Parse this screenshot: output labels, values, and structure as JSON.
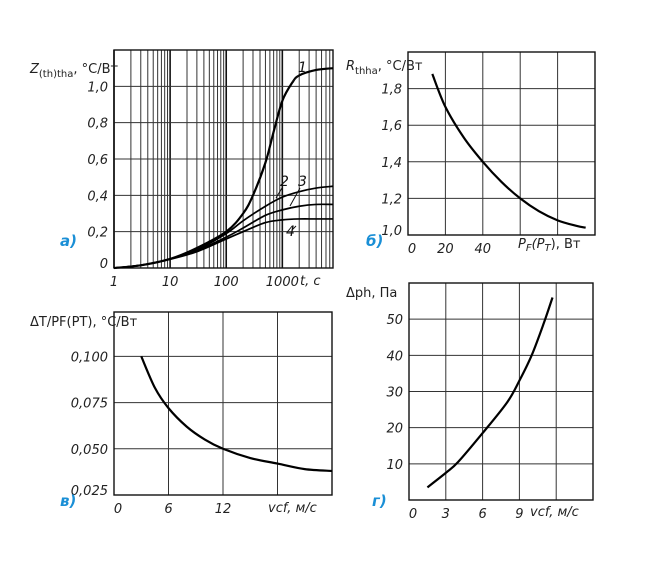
{
  "chart_data": [
    {
      "id": "a",
      "type": "line",
      "panel_label": "а)",
      "ylabel": "Z(th)tha, °C/Вт",
      "ylabel_parts": [
        "Z",
        "(th)tha",
        ", °C/Вт"
      ],
      "xlabel": "t, c",
      "xscale": "log",
      "xlim": [
        1,
        8000
      ],
      "ylim": [
        0,
        1.2
      ],
      "grid": true,
      "xticks": [
        {
          "v": 1,
          "label": "1"
        },
        {
          "v": 10,
          "label": "10"
        },
        {
          "v": 100,
          "label": "100"
        },
        {
          "v": 1000,
          "label": "1000"
        }
      ],
      "yticks": [
        {
          "v": 0,
          "label": "0"
        },
        {
          "v": 0.2,
          "label": "0,2"
        },
        {
          "v": 0.4,
          "label": "0,4"
        },
        {
          "v": 0.6,
          "label": "0,6"
        },
        {
          "v": 0.8,
          "label": "0,8"
        },
        {
          "v": 1.0,
          "label": "1,0"
        }
      ],
      "series": [
        {
          "name": "1",
          "x": [
            1,
            3,
            10,
            30,
            100,
            200,
            300,
            500,
            700,
            1000,
            1500,
            2000,
            4000,
            8000
          ],
          "y": [
            0,
            0.015,
            0.05,
            0.11,
            0.2,
            0.3,
            0.4,
            0.58,
            0.75,
            0.92,
            1.02,
            1.06,
            1.09,
            1.1
          ]
        },
        {
          "name": "2",
          "x": [
            1,
            3,
            10,
            30,
            100,
            200,
            500,
            1000,
            2000,
            4000,
            8000
          ],
          "y": [
            0,
            0.015,
            0.05,
            0.1,
            0.19,
            0.26,
            0.34,
            0.39,
            0.42,
            0.44,
            0.45
          ]
        },
        {
          "name": "3",
          "x": [
            1,
            3,
            10,
            30,
            100,
            200,
            500,
            1000,
            2000,
            4000,
            8000
          ],
          "y": [
            0,
            0.015,
            0.05,
            0.095,
            0.17,
            0.22,
            0.29,
            0.32,
            0.34,
            0.35,
            0.35
          ]
        },
        {
          "name": "4",
          "x": [
            1,
            3,
            10,
            30,
            100,
            200,
            500,
            1000,
            2000,
            4000,
            8000
          ],
          "y": [
            0,
            0.015,
            0.048,
            0.09,
            0.16,
            0.2,
            0.25,
            0.265,
            0.27,
            0.27,
            0.27
          ]
        }
      ]
    },
    {
      "id": "b",
      "type": "line",
      "panel_label": "б)",
      "ylabel": "Rthha, °C/Вт",
      "ylabel_parts": [
        "R",
        "thha",
        ", °C/Вт"
      ],
      "xlabel": "PF(PT), Вт",
      "xlabel_parts": [
        "P",
        "F",
        "(P",
        "T",
        "), Вт"
      ],
      "xscale": "linear",
      "xlim": [
        0,
        100
      ],
      "ylim": [
        1.0,
        2.0
      ],
      "grid": true,
      "xticks": [
        {
          "v": 0,
          "label": "0"
        },
        {
          "v": 20,
          "label": "20"
        },
        {
          "v": 40,
          "label": "40"
        }
      ],
      "yticks": [
        {
          "v": 1.0,
          "label": "1,0"
        },
        {
          "v": 1.2,
          "label": "1,2"
        },
        {
          "v": 1.4,
          "label": "1,4"
        },
        {
          "v": 1.6,
          "label": "1,6"
        },
        {
          "v": 1.8,
          "label": "1,8"
        }
      ],
      "xgrid": [
        20,
        40,
        60,
        80
      ],
      "ygrid": [
        1.2,
        1.4,
        1.6,
        1.8
      ],
      "series": [
        {
          "name": "Rthha",
          "x": [
            13,
            20,
            30,
            40,
            50,
            60,
            70,
            80,
            90,
            95
          ],
          "y": [
            1.88,
            1.7,
            1.53,
            1.4,
            1.29,
            1.2,
            1.13,
            1.08,
            1.05,
            1.04
          ]
        }
      ]
    },
    {
      "id": "c",
      "type": "line",
      "panel_label": "в)",
      "ylabel": "ΔT/PF(PT), °C/Вт",
      "xlabel": "vcf, м/с",
      "xscale": "linear",
      "xlim": [
        0,
        24
      ],
      "ylim": [
        0.025,
        0.124
      ],
      "grid": true,
      "xticks": [
        {
          "v": 0,
          "label": "0"
        },
        {
          "v": 6,
          "label": "6"
        },
        {
          "v": 12,
          "label": "12"
        }
      ],
      "yticks": [
        {
          "v": 0.025,
          "label": "0,025"
        },
        {
          "v": 0.05,
          "label": "0,050"
        },
        {
          "v": 0.075,
          "label": "0,075"
        },
        {
          "v": 0.1,
          "label": "0,100"
        }
      ],
      "xgrid": [
        6,
        12,
        18
      ],
      "ygrid": [
        0.05,
        0.075,
        0.1
      ],
      "series": [
        {
          "name": "ΔT/PF",
          "x": [
            3,
            4.5,
            6,
            8,
            10,
            12,
            15,
            18,
            21,
            24
          ],
          "y": [
            0.1,
            0.083,
            0.072,
            0.062,
            0.055,
            0.05,
            0.045,
            0.042,
            0.039,
            0.038
          ]
        }
      ]
    },
    {
      "id": "d",
      "type": "line",
      "panel_label": "г)",
      "ylabel": "Δph, Па",
      "xlabel": "vcf, м/с",
      "xscale": "linear",
      "xlim": [
        0,
        15
      ],
      "ylim": [
        0,
        60
      ],
      "grid": true,
      "xticks": [
        {
          "v": 0,
          "label": "0"
        },
        {
          "v": 3,
          "label": "3"
        },
        {
          "v": 6,
          "label": "6"
        },
        {
          "v": 9,
          "label": "9"
        }
      ],
      "yticks": [
        {
          "v": 10,
          "label": "10"
        },
        {
          "v": 20,
          "label": "20"
        },
        {
          "v": 30,
          "label": "30"
        },
        {
          "v": 40,
          "label": "40"
        },
        {
          "v": 50,
          "label": "50"
        }
      ],
      "xgrid": [
        3,
        6,
        9,
        12
      ],
      "ygrid": [
        10,
        20,
        30,
        40,
        50
      ],
      "series": [
        {
          "name": "Δph",
          "x": [
            1.5,
            3,
            4,
            6,
            8,
            9,
            10,
            11,
            11.7
          ],
          "y": [
            3.5,
            7.5,
            10.5,
            18.5,
            27,
            33,
            40,
            49,
            56
          ]
        }
      ]
    }
  ]
}
